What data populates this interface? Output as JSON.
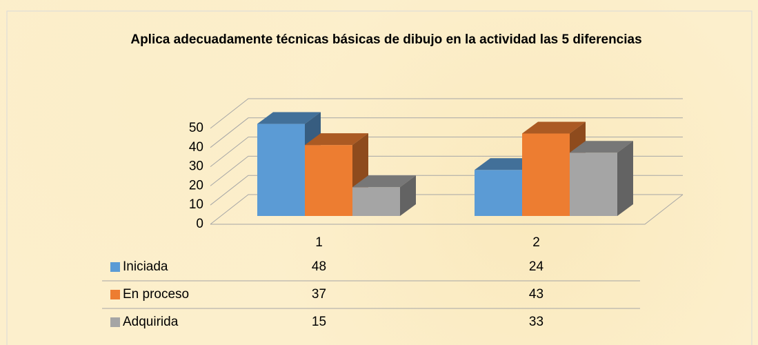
{
  "chart_data": {
    "type": "bar3d",
    "title": "Aplica adecuadamente técnicas básicas de dibujo en la actividad las 5 diferencias",
    "categories": [
      "1",
      "2"
    ],
    "series": [
      {
        "name": "Iniciada",
        "color": "#5b9bd5",
        "values": [
          48,
          24
        ]
      },
      {
        "name": "En proceso",
        "color": "#ed7d31",
        "values": [
          37,
          43
        ]
      },
      {
        "name": "Adquirida",
        "color": "#a5a5a5",
        "values": [
          15,
          33
        ]
      }
    ],
    "ylim": [
      0,
      50
    ],
    "yticks": [
      0,
      10,
      20,
      30,
      40,
      50
    ],
    "grid": true,
    "data_table": true
  }
}
